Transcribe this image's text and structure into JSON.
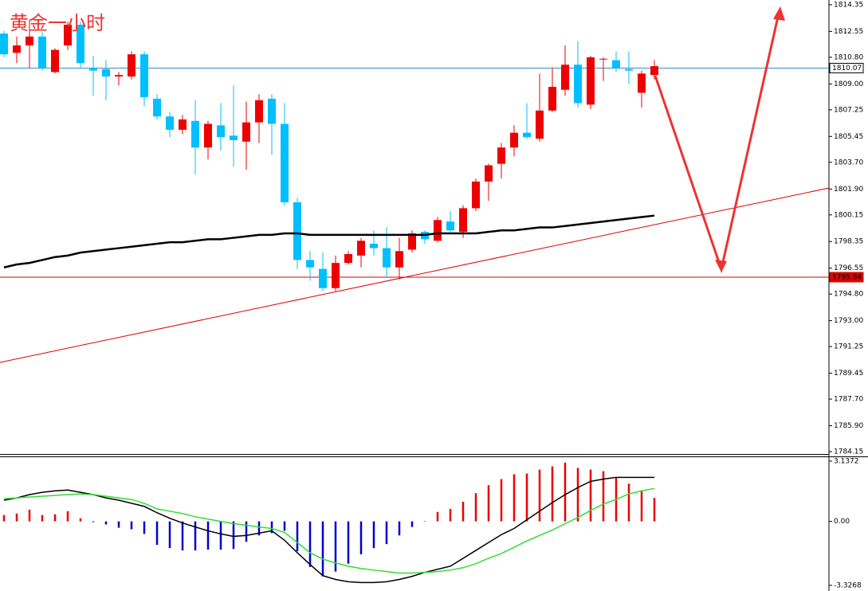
{
  "chart_data": [
    {
      "type": "candlestick",
      "title": "黄金一小时",
      "open": [
        1812.4,
        1811.1,
        1811.6,
        1812.2,
        1809.8,
        1811.6,
        1813.0,
        1810.1,
        1810.0,
        1809.5,
        1809.5,
        1811.0,
        1808.0,
        1806.8,
        1805.9,
        1806.5,
        1804.7,
        1806.2,
        1805.5,
        1805.1,
        1806.4,
        1808.0,
        1806.3,
        1801.0,
        1797.1,
        1796.5,
        1795.2,
        1796.9,
        1797.4,
        1798.2,
        1797.9,
        1796.6,
        1797.8,
        1799.0,
        1798.4,
        1799.7,
        1799.0,
        1800.6,
        1802.4,
        1803.6,
        1804.7,
        1805.7,
        1805.3,
        1807.2,
        1808.6,
        1810.3,
        1807.6,
        1810.7,
        1810.6,
        1810.0,
        1808.4,
        1809.6
      ],
      "high": [
        1812.6,
        1812.2,
        1813.3,
        1812.5,
        1811.4,
        1813.2,
        1813.2,
        1810.9,
        1810.6,
        1809.8,
        1811.2,
        1811.2,
        1808.3,
        1807.1,
        1806.9,
        1807.9,
        1806.5,
        1807.7,
        1808.9,
        1807.8,
        1808.3,
        1808.3,
        1807.7,
        1801.3,
        1797.7,
        1797.6,
        1797.4,
        1797.7,
        1798.6,
        1799.1,
        1799.3,
        1798.6,
        1799.1,
        1799.1,
        1800.0,
        1800.4,
        1800.8,
        1802.6,
        1803.6,
        1805.0,
        1806.2,
        1807.7,
        1809.7,
        1810.1,
        1811.6,
        1811.9,
        1810.9,
        1810.8,
        1811.2,
        1811.2,
        1809.9,
        1810.6
      ],
      "low": [
        1810.8,
        1810.4,
        1810.1,
        1809.9,
        1809.7,
        1811.3,
        1810.1,
        1808.2,
        1807.9,
        1808.9,
        1809.3,
        1807.5,
        1806.6,
        1805.4,
        1805.6,
        1802.9,
        1803.9,
        1804.5,
        1803.4,
        1803.2,
        1805.0,
        1804.2,
        1800.8,
        1796.5,
        1795.7,
        1795.0,
        1795.0,
        1796.8,
        1796.6,
        1797.4,
        1795.9,
        1795.8,
        1797.6,
        1798.2,
        1798.3,
        1799.0,
        1798.6,
        1800.4,
        1801.1,
        1802.6,
        1804.1,
        1805.3,
        1805.1,
        1807.1,
        1808.2,
        1807.4,
        1807.3,
        1809.2,
        1809.8,
        1809.0,
        1807.4,
        1809.3
      ],
      "close": [
        1811.0,
        1811.6,
        1812.2,
        1810.1,
        1811.3,
        1813.0,
        1810.4,
        1809.9,
        1809.5,
        1809.6,
        1811.0,
        1808.1,
        1806.8,
        1805.9,
        1806.6,
        1804.7,
        1806.3,
        1805.4,
        1805.2,
        1806.4,
        1807.9,
        1806.3,
        1801.0,
        1797.1,
        1796.6,
        1795.2,
        1796.9,
        1797.5,
        1798.4,
        1797.9,
        1796.6,
        1797.7,
        1798.9,
        1798.5,
        1799.8,
        1799.1,
        1800.6,
        1802.4,
        1803.5,
        1804.7,
        1805.7,
        1805.4,
        1807.2,
        1808.8,
        1810.3,
        1807.7,
        1810.8,
        1810.7,
        1810.1,
        1809.9,
        1809.7,
        1810.2
      ],
      "ma": [
        1796.6,
        1796.8,
        1796.9,
        1797.1,
        1797.3,
        1797.4,
        1797.6,
        1797.7,
        1797.8,
        1797.9,
        1798.0,
        1798.1,
        1798.2,
        1798.3,
        1798.3,
        1798.4,
        1798.5,
        1798.5,
        1798.6,
        1798.7,
        1798.8,
        1798.8,
        1798.9,
        1798.9,
        1798.8,
        1798.8,
        1798.8,
        1798.8,
        1798.8,
        1798.8,
        1798.8,
        1798.8,
        1798.8,
        1798.8,
        1798.9,
        1798.9,
        1798.9,
        1798.9,
        1799.0,
        1799.1,
        1799.1,
        1799.2,
        1799.3,
        1799.3,
        1799.4,
        1799.5,
        1799.6,
        1799.7,
        1799.8,
        1799.9,
        1800.0,
        1800.1
      ],
      "up_color": "#ee0000",
      "down_color": "#00bfff",
      "ma_color": "#000000",
      "price_lines": [
        {
          "value": 1810.07,
          "color": "#3a8fc4"
        },
        {
          "value": 1795.94,
          "color": "#dd0000"
        }
      ],
      "ylim": [
        1783.99,
        1814.67
      ],
      "yticks": [
        1814.35,
        1812.55,
        {
          "value": 1810.8,
          "label": "1810.80"
        },
        {
          "value": 1809,
          "label": "1809.00"
        },
        1807.25,
        1805.45,
        {
          "value": 1803.7,
          "label": "1803.70"
        },
        {
          "value": 1801.9,
          "label": "1801.90"
        },
        1800.15,
        1798.35,
        1796.55,
        {
          "value": 1794.8,
          "label": "1794.80"
        },
        {
          "value": 1793,
          "label": "1793.00"
        },
        1791.25,
        1789.45,
        {
          "value": 1787.7,
          "label": "1787.70"
        },
        {
          "value": 1785.9,
          "label": "1785.90"
        },
        1784.15
      ]
    },
    {
      "type": "macd",
      "histogram": [
        0.33,
        0.41,
        0.61,
        0.33,
        0.37,
        0.53,
        0.16,
        -0.04,
        -0.16,
        -0.33,
        -0.41,
        -0.65,
        -1.22,
        -1.39,
        -1.51,
        -1.51,
        -1.47,
        -1.47,
        -1.43,
        -1.06,
        -0.73,
        -0.61,
        -0.49,
        -1.55,
        -2.37,
        -2.86,
        -2.61,
        -2.2,
        -1.71,
        -1.39,
        -1.18,
        -0.73,
        -0.29,
        -0.02,
        0.49,
        0.65,
        1.02,
        1.47,
        1.88,
        2.2,
        2.45,
        2.49,
        2.69,
        2.86,
        3.06,
        2.78,
        2.69,
        2.61,
        2.29,
        1.96,
        1.59,
        1.22
      ],
      "macd": [
        1.1,
        1.22,
        1.39,
        1.51,
        1.59,
        1.63,
        1.51,
        1.39,
        1.22,
        1.1,
        0.94,
        0.78,
        0.45,
        0.16,
        -0.08,
        -0.29,
        -0.49,
        -0.65,
        -0.78,
        -0.73,
        -0.61,
        -0.49,
        -0.98,
        -1.63,
        -2.24,
        -2.82,
        -3.02,
        -3.14,
        -3.18,
        -3.18,
        -3.14,
        -3.02,
        -2.86,
        -2.65,
        -2.49,
        -2.33,
        -1.92,
        -1.51,
        -1.1,
        -0.69,
        -0.37,
        0.08,
        0.53,
        0.98,
        1.39,
        1.76,
        2.08,
        2.2,
        2.29,
        2.29,
        2.29,
        2.29
      ],
      "signal": [
        1.18,
        1.22,
        1.27,
        1.31,
        1.35,
        1.39,
        1.43,
        1.39,
        1.31,
        1.22,
        1.14,
        0.94,
        0.65,
        0.53,
        0.41,
        0.24,
        0.12,
        0,
        -0.12,
        -0.2,
        -0.29,
        -0.37,
        -0.57,
        -1.1,
        -1.63,
        -1.96,
        -2.16,
        -2.33,
        -2.45,
        -2.53,
        -2.61,
        -2.69,
        -2.69,
        -2.65,
        -2.61,
        -2.53,
        -2.41,
        -2.2,
        -1.92,
        -1.67,
        -1.35,
        -1.02,
        -0.73,
        -0.45,
        -0.12,
        0.2,
        0.57,
        0.9,
        1.14,
        1.43,
        1.59,
        1.71
      ],
      "positive_color": "#ee0000",
      "negative_color": "#0000cc",
      "macd_color": "#000000",
      "signal_color": "#33dd33",
      "ylim": [
        -3.62,
        3.38
      ],
      "yticks": [
        3.1372,
        {
          "value": 0,
          "label": "0.00"
        },
        -3.3268
      ]
    }
  ]
}
